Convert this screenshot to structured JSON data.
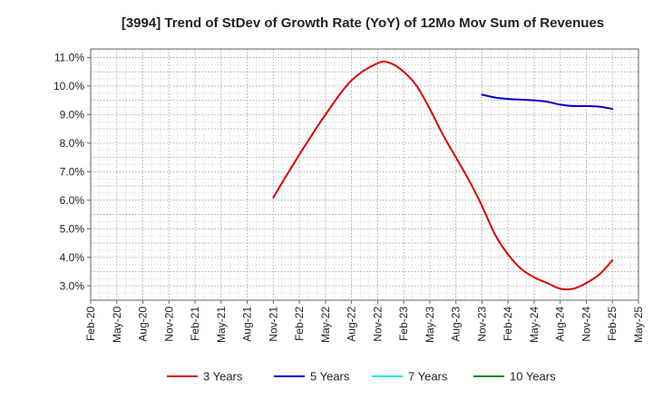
{
  "chart_data": {
    "type": "line",
    "title": "[3994]  Trend of StDev of Growth Rate (YoY) of 12Mo Mov Sum of Revenues",
    "xlabel": "",
    "ylabel": "",
    "categories": [
      "Feb-20",
      "May-20",
      "Aug-20",
      "Nov-20",
      "Feb-21",
      "May-21",
      "Aug-21",
      "Nov-21",
      "Feb-22",
      "May-22",
      "Aug-22",
      "Nov-22",
      "Feb-23",
      "May-23",
      "Aug-23",
      "Nov-23",
      "Feb-24",
      "May-24",
      "Aug-24",
      "Nov-24",
      "Feb-25",
      "May-25"
    ],
    "y_ticks": [
      "3.0%",
      "4.0%",
      "5.0%",
      "6.0%",
      "7.0%",
      "8.0%",
      "9.0%",
      "10.0%",
      "11.0%"
    ],
    "ylim": [
      2.5,
      11.3
    ],
    "grid": true,
    "series": [
      {
        "name": "3 Years",
        "color": "#dd0000",
        "points": [
          [
            7,
            6.1
          ],
          [
            8,
            7.6
          ],
          [
            9,
            9.0
          ],
          [
            10,
            10.2
          ],
          [
            11,
            10.8
          ],
          [
            11.5,
            10.8
          ],
          [
            12,
            10.5
          ],
          [
            12.5,
            10.0
          ],
          [
            13,
            9.2
          ],
          [
            13.5,
            8.3
          ],
          [
            14,
            7.5
          ],
          [
            14.5,
            6.7
          ],
          [
            15,
            5.8
          ],
          [
            15.5,
            4.8
          ],
          [
            16,
            4.1
          ],
          [
            16.5,
            3.6
          ],
          [
            17,
            3.3
          ],
          [
            17.5,
            3.1
          ],
          [
            18,
            2.9
          ],
          [
            18.5,
            2.9
          ],
          [
            19,
            3.1
          ],
          [
            19.5,
            3.4
          ],
          [
            20,
            3.9
          ]
        ]
      },
      {
        "name": "5 Years",
        "color": "#0000cc",
        "points": [
          [
            15,
            9.7
          ],
          [
            15.5,
            9.6
          ],
          [
            16,
            9.55
          ],
          [
            17,
            9.5
          ],
          [
            17.5,
            9.45
          ],
          [
            18,
            9.35
          ],
          [
            18.5,
            9.3
          ],
          [
            19,
            9.3
          ],
          [
            19.5,
            9.28
          ],
          [
            20,
            9.2
          ]
        ]
      },
      {
        "name": "7 Years",
        "color": "#00e5ee",
        "points": []
      },
      {
        "name": "10 Years",
        "color": "#228822",
        "points": []
      }
    ]
  }
}
